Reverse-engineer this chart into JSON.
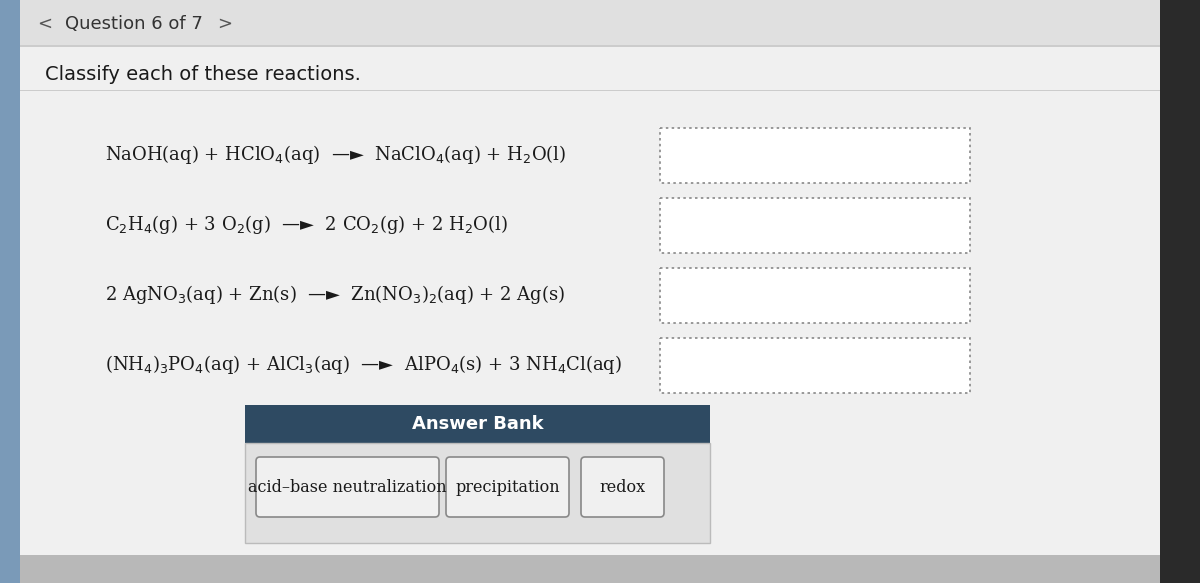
{
  "bg_outer_color": "#b8b8b8",
  "bg_panel_color": "#ebebeb",
  "panel_left_strip_color": "#7a9ab8",
  "header_text": "Question 6 of 7",
  "instruction": "Classify each of these reactions.",
  "reactions": [
    "NaOH(aq) + HClO$_4$(aq)  —►  NaClO$_4$(aq) + H$_2$O(l)",
    "C$_2$H$_4$(g) + 3 O$_2$(g)  —►  2 CO$_2$(g) + 2 H$_2$O(l)",
    "2 AgNO$_3$(aq) + Zn(s)  —►  Zn(NO$_3$)$_2$(aq) + 2 Ag(s)",
    "(NH$_4$)$_3$PO$_4$(aq) + AlCl$_3$(aq)  —►  AlPO$_4$(s) + 3 NH$_4$Cl(aq)"
  ],
  "answer_bank_label": "Answer Bank",
  "answer_options": [
    "acid–base neutralization",
    "precipitation",
    "redox"
  ],
  "answer_bank_header_color": "#2e4a62",
  "answer_bank_body_color": "#e0e0e0",
  "answer_option_bg": "#f0f0f0",
  "answer_option_border": "#888888",
  "dot_box_color": "#888888",
  "text_color": "#1a1a1a",
  "header_color": "#333333",
  "nav_color": "#555555",
  "white_panel": "#f0f0f0",
  "sep_line_color": "#cccccc"
}
